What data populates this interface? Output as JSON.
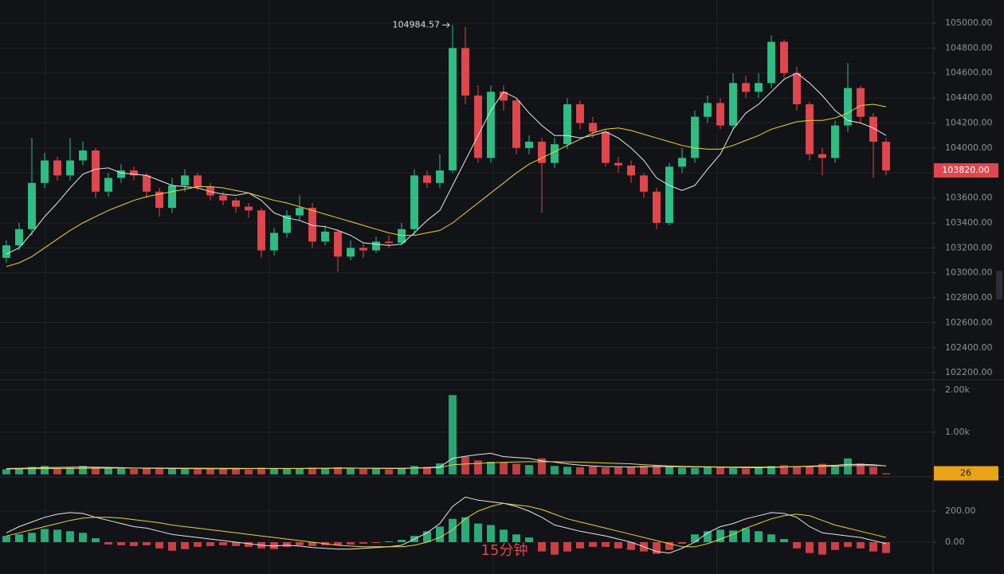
{
  "chart_data": {
    "type": "candlestick",
    "interval_label": "15分钟",
    "price": {
      "up_color": "#2ebd85",
      "down_color": "#e0464e",
      "ylim": [
        102150,
        105185
      ],
      "grid": true,
      "yticks": [
        {
          "value": 102200,
          "label": "102200.00"
        },
        {
          "value": 102400,
          "label": "102400.00"
        },
        {
          "value": 102600,
          "label": "102600.00"
        },
        {
          "value": 102800,
          "label": "102800.00"
        },
        {
          "value": 103000,
          "label": "103000.00"
        },
        {
          "value": 103200,
          "label": "103200.00"
        },
        {
          "value": 103400,
          "label": "103400.00"
        },
        {
          "value": 103600,
          "label": "103600.00"
        },
        {
          "value": 103800,
          "label": "103800.00"
        },
        {
          "value": 104000,
          "label": "104000.00"
        },
        {
          "value": 104200,
          "label": "104200.00"
        },
        {
          "value": 104400,
          "label": "104400.00"
        },
        {
          "value": 104600,
          "label": "104600.00"
        },
        {
          "value": 104800,
          "label": "104800.00"
        },
        {
          "value": 105000,
          "label": "105000.00"
        }
      ],
      "open": [
        103120,
        103220,
        103350,
        103720,
        103900,
        103780,
        103900,
        103980,
        103650,
        103760,
        103820,
        103780,
        103650,
        103520,
        103700,
        103780,
        103690,
        103620,
        103580,
        103530,
        103500,
        103180,
        103320,
        103460,
        103520,
        103250,
        103330,
        103130,
        103200,
        103180,
        103250,
        103240,
        103350,
        103780,
        103720,
        103820,
        104800,
        104420,
        103920,
        104450,
        104380,
        104000,
        104050,
        103880,
        104030,
        104350,
        104200,
        104130,
        103880,
        103860,
        103780,
        103650,
        103400,
        103850,
        103920,
        104250,
        104360,
        104180,
        104520,
        104450,
        104520,
        104850,
        104600,
        104350,
        103950,
        103920,
        104180,
        104480,
        104250,
        104050
      ],
      "high": [
        103260,
        103400,
        104080,
        103960,
        103930,
        104080,
        104050,
        104000,
        103800,
        103870,
        103850,
        103800,
        103680,
        103760,
        103830,
        103800,
        103720,
        103650,
        103600,
        103560,
        103520,
        103360,
        103500,
        103620,
        103560,
        103380,
        103350,
        103260,
        103240,
        103290,
        103300,
        103400,
        103830,
        103820,
        103950,
        104984.57,
        104970,
        104500,
        104500,
        104500,
        104400,
        104100,
        104080,
        104080,
        104400,
        104380,
        104250,
        104150,
        103930,
        103900,
        103800,
        103680,
        103880,
        104000,
        104300,
        104420,
        104400,
        104600,
        104580,
        104600,
        104900,
        104870,
        104650,
        104370,
        104000,
        104220,
        104680,
        104500,
        104280,
        104080
      ],
      "low": [
        103080,
        103180,
        103300,
        103680,
        103740,
        103740,
        103860,
        103600,
        103610,
        103720,
        103740,
        103600,
        103450,
        103480,
        103650,
        103660,
        103580,
        103540,
        103480,
        103440,
        103120,
        103140,
        103280,
        103420,
        103200,
        103220,
        103010,
        103100,
        103120,
        103160,
        103200,
        103220,
        103300,
        103680,
        103680,
        103800,
        104350,
        103880,
        103880,
        104300,
        103950,
        103950,
        103480,
        103840,
        103990,
        104150,
        104080,
        103850,
        103800,
        103720,
        103600,
        103350,
        103380,
        103800,
        103880,
        104200,
        104150,
        104150,
        104400,
        104400,
        104480,
        104560,
        104300,
        103900,
        103780,
        103880,
        104130,
        104200,
        103760,
        103780
      ],
      "close": [
        103220,
        103350,
        103720,
        103900,
        103780,
        103900,
        103980,
        103650,
        103760,
        103820,
        103780,
        103650,
        103520,
        103700,
        103780,
        103690,
        103620,
        103580,
        103530,
        103500,
        103180,
        103320,
        103460,
        103520,
        103250,
        103330,
        103130,
        103200,
        103180,
        103250,
        103240,
        103350,
        103780,
        103720,
        103820,
        104800,
        104420,
        103920,
        104450,
        104380,
        104000,
        104050,
        103880,
        104030,
        104350,
        104200,
        104130,
        103880,
        103860,
        103780,
        103650,
        103400,
        103850,
        103920,
        104250,
        104360,
        104180,
        104520,
        104450,
        104520,
        104850,
        104600,
        104350,
        103950,
        103920,
        104180,
        104480,
        104250,
        104050,
        103820
      ],
      "lines": [
        {
          "color": "#e6e6e6",
          "values": [
            103150,
            103200,
            103320,
            103450,
            103560,
            103680,
            103790,
            103830,
            103840,
            103800,
            103790,
            103780,
            103740,
            103700,
            103690,
            103680,
            103650,
            103630,
            103620,
            103640,
            103580,
            103480,
            103440,
            103420,
            103380,
            103370,
            103340,
            103300,
            103240,
            103230,
            103220,
            103230,
            103320,
            103420,
            103500,
            103700,
            103900,
            104100,
            104300,
            104450,
            104400,
            104280,
            104180,
            104100,
            104100,
            104080,
            104100,
            104130,
            104080,
            104000,
            103900,
            103760,
            103700,
            103660,
            103700,
            103830,
            103950,
            104150,
            104280,
            104350,
            104450,
            104550,
            104600,
            104520,
            104420,
            104300,
            104220,
            104200,
            104160,
            104100
          ]
        },
        {
          "color": "#e8d43a",
          "values": [
            103050,
            103080,
            103130,
            103200,
            103270,
            103340,
            103400,
            103450,
            103500,
            103540,
            103580,
            103610,
            103630,
            103650,
            103670,
            103690,
            103690,
            103680,
            103660,
            103640,
            103610,
            103580,
            103560,
            103530,
            103500,
            103470,
            103440,
            103410,
            103380,
            103350,
            103320,
            103300,
            103300,
            103320,
            103340,
            103400,
            103480,
            103560,
            103640,
            103720,
            103800,
            103870,
            103920,
            103970,
            104020,
            104070,
            104120,
            104150,
            104160,
            104140,
            104110,
            104080,
            104050,
            104020,
            104000,
            103990,
            103990,
            104020,
            104060,
            104100,
            104150,
            104180,
            104210,
            104220,
            104220,
            104240,
            104280,
            104340,
            104350,
            104330
          ]
        }
      ]
    },
    "last_price": {
      "value": 103820,
      "label": "103820.00"
    },
    "high_annotation": {
      "value": 104984.57,
      "label": "104984.57"
    },
    "volume": {
      "ylim": [
        -40,
        2225
      ],
      "yticks": [
        {
          "value": 1000,
          "label": "1.00k"
        },
        {
          "value": 2000,
          "label": "2.00k"
        }
      ],
      "last_color": "#e8a317",
      "values": [
        120,
        140,
        180,
        200,
        150,
        160,
        200,
        170,
        150,
        140,
        130,
        150,
        160,
        140,
        130,
        120,
        140,
        150,
        130,
        110,
        160,
        150,
        140,
        140,
        160,
        150,
        170,
        140,
        130,
        140,
        120,
        150,
        200,
        180,
        260,
        1880,
        420,
        330,
        300,
        280,
        250,
        220,
        380,
        200,
        180,
        170,
        190,
        160,
        170,
        180,
        200,
        220,
        190,
        160,
        150,
        170,
        160,
        150,
        140,
        170,
        200,
        220,
        190,
        200,
        250,
        200,
        380,
        260,
        180,
        26
      ],
      "lines": [
        {
          "color": "#e6e6e6",
          "values": [
            140,
            145,
            150,
            160,
            165,
            170,
            175,
            170,
            165,
            160,
            150,
            145,
            145,
            140,
            140,
            135,
            135,
            135,
            135,
            135,
            140,
            140,
            140,
            140,
            145,
            145,
            150,
            150,
            145,
            145,
            140,
            140,
            150,
            160,
            175,
            380,
            430,
            470,
            500,
            420,
            400,
            380,
            320,
            290,
            250,
            220,
            200,
            185,
            180,
            175,
            180,
            185,
            185,
            180,
            175,
            175,
            170,
            165,
            160,
            160,
            165,
            175,
            185,
            195,
            205,
            215,
            235,
            240,
            230,
            200
          ]
        },
        {
          "color": "#e8d43a",
          "values": [
            130,
            132,
            135,
            138,
            140,
            142,
            145,
            147,
            148,
            150,
            150,
            150,
            150,
            148,
            147,
            146,
            145,
            144,
            143,
            142,
            142,
            142,
            142,
            142,
            143,
            144,
            145,
            146,
            146,
            146,
            146,
            147,
            150,
            155,
            160,
            230,
            245,
            260,
            275,
            285,
            295,
            300,
            300,
            300,
            295,
            290,
            280,
            270,
            260,
            250,
            230,
            215,
            200,
            190,
            185,
            180,
            178,
            176,
            175,
            175,
            176,
            178,
            182,
            186,
            190,
            195,
            205,
            210,
            210,
            205
          ]
        }
      ]
    },
    "macd": {
      "ylim": [
        -205,
        415
      ],
      "yticks": [
        {
          "value": 0,
          "label": "0.00"
        },
        {
          "value": 200,
          "label": "200.00"
        }
      ],
      "pos_color": "#2ebd85",
      "neg_color": "#e0464e",
      "hist": [
        40,
        50,
        60,
        85,
        80,
        70,
        60,
        25,
        -15,
        -20,
        -25,
        -20,
        -40,
        -55,
        -45,
        -30,
        -25,
        -20,
        -25,
        -30,
        -40,
        -45,
        -30,
        -20,
        -25,
        -20,
        -20,
        -15,
        -10,
        -5,
        5,
        15,
        40,
        70,
        100,
        150,
        160,
        120,
        110,
        80,
        50,
        30,
        -60,
        -80,
        -60,
        -40,
        -30,
        -30,
        -40,
        -50,
        -60,
        -75,
        -50,
        -10,
        50,
        70,
        80,
        75,
        90,
        70,
        50,
        20,
        -40,
        -70,
        -80,
        -50,
        -30,
        -40,
        -60,
        -70
      ],
      "lines": [
        {
          "color": "#e6e6e6",
          "values": [
            60,
            100,
            130,
            160,
            180,
            190,
            185,
            160,
            140,
            120,
            100,
            90,
            70,
            50,
            40,
            30,
            20,
            10,
            0,
            -10,
            -20,
            -25,
            -20,
            -25,
            -35,
            -40,
            -45,
            -45,
            -40,
            -35,
            -30,
            -20,
            20,
            60,
            120,
            230,
            290,
            270,
            260,
            250,
            230,
            200,
            160,
            110,
            90,
            70,
            55,
            40,
            20,
            0,
            -30,
            -60,
            -70,
            -40,
            0,
            60,
            100,
            120,
            150,
            170,
            190,
            185,
            160,
            100,
            60,
            50,
            40,
            30,
            10,
            -10
          ]
        },
        {
          "color": "#e8d43a",
          "values": [
            40,
            60,
            80,
            100,
            120,
            140,
            155,
            160,
            160,
            155,
            145,
            135,
            125,
            110,
            100,
            90,
            80,
            70,
            60,
            50,
            40,
            30,
            20,
            10,
            0,
            -10,
            -20,
            -25,
            -30,
            -30,
            -30,
            -30,
            -20,
            0,
            30,
            80,
            150,
            200,
            230,
            250,
            240,
            230,
            210,
            180,
            150,
            130,
            110,
            90,
            70,
            50,
            30,
            10,
            -10,
            -30,
            -30,
            -10,
            20,
            50,
            90,
            120,
            150,
            170,
            180,
            170,
            140,
            110,
            90,
            70,
            50,
            30
          ]
        }
      ]
    }
  }
}
